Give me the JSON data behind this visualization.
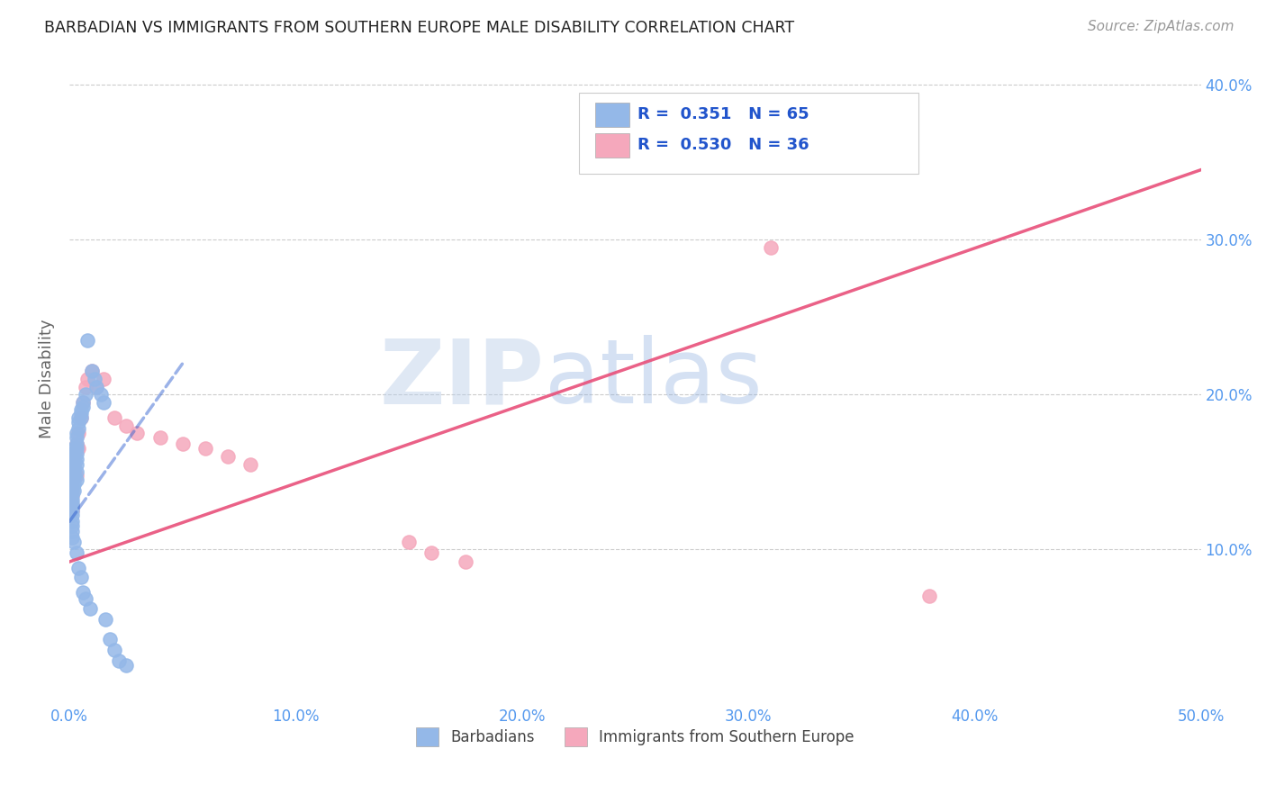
{
  "title": "BARBADIAN VS IMMIGRANTS FROM SOUTHERN EUROPE MALE DISABILITY CORRELATION CHART",
  "source": "Source: ZipAtlas.com",
  "ylabel": "Male Disability",
  "xlim": [
    0.0,
    0.5
  ],
  "ylim": [
    0.0,
    0.42
  ],
  "xticks": [
    0.0,
    0.1,
    0.2,
    0.3,
    0.4,
    0.5
  ],
  "yticks": [
    0.1,
    0.2,
    0.3,
    0.4
  ],
  "xtick_labels": [
    "0.0%",
    "10.0%",
    "20.0%",
    "30.0%",
    "40.0%",
    "50.0%"
  ],
  "ytick_labels": [
    "10.0%",
    "20.0%",
    "30.0%",
    "40.0%"
  ],
  "watermark_zip": "ZIP",
  "watermark_atlas": "atlas",
  "legend_r1": "R =  0.351   N = 65",
  "legend_r2": "R =  0.530   N = 36",
  "blue_color": "#94b8e8",
  "pink_color": "#f5a8bc",
  "blue_line_color": "#2255cc",
  "pink_line_color": "#e8507a",
  "title_color": "#333333",
  "axis_color": "#5599ee",
  "blue_scatter_x": [
    0.001,
    0.001,
    0.001,
    0.001,
    0.001,
    0.001,
    0.001,
    0.001,
    0.001,
    0.001,
    0.001,
    0.001,
    0.001,
    0.001,
    0.001,
    0.001,
    0.001,
    0.001,
    0.001,
    0.001,
    0.002,
    0.002,
    0.002,
    0.002,
    0.002,
    0.002,
    0.002,
    0.002,
    0.002,
    0.002,
    0.003,
    0.003,
    0.003,
    0.003,
    0.003,
    0.003,
    0.003,
    0.003,
    0.003,
    0.003,
    0.004,
    0.004,
    0.004,
    0.004,
    0.005,
    0.005,
    0.005,
    0.005,
    0.006,
    0.006,
    0.006,
    0.007,
    0.007,
    0.008,
    0.009,
    0.01,
    0.011,
    0.012,
    0.014,
    0.015,
    0.016,
    0.018,
    0.02,
    0.022,
    0.025
  ],
  "blue_scatter_y": [
    0.155,
    0.155,
    0.158,
    0.16,
    0.162,
    0.148,
    0.145,
    0.142,
    0.14,
    0.138,
    0.135,
    0.132,
    0.13,
    0.128,
    0.125,
    0.122,
    0.118,
    0.115,
    0.112,
    0.108,
    0.165,
    0.162,
    0.158,
    0.155,
    0.15,
    0.148,
    0.145,
    0.142,
    0.138,
    0.105,
    0.175,
    0.172,
    0.168,
    0.165,
    0.162,
    0.158,
    0.155,
    0.15,
    0.145,
    0.098,
    0.185,
    0.182,
    0.178,
    0.088,
    0.19,
    0.188,
    0.185,
    0.082,
    0.195,
    0.192,
    0.072,
    0.2,
    0.068,
    0.235,
    0.062,
    0.215,
    0.21,
    0.205,
    0.2,
    0.195,
    0.055,
    0.042,
    0.035,
    0.028,
    0.025
  ],
  "pink_scatter_x": [
    0.001,
    0.001,
    0.001,
    0.001,
    0.001,
    0.001,
    0.001,
    0.001,
    0.002,
    0.002,
    0.002,
    0.002,
    0.003,
    0.003,
    0.004,
    0.004,
    0.005,
    0.006,
    0.007,
    0.008,
    0.01,
    0.012,
    0.015,
    0.02,
    0.025,
    0.03,
    0.04,
    0.05,
    0.06,
    0.07,
    0.08,
    0.15,
    0.16,
    0.175,
    0.31,
    0.38
  ],
  "pink_scatter_y": [
    0.155,
    0.148,
    0.145,
    0.14,
    0.138,
    0.135,
    0.128,
    0.125,
    0.162,
    0.158,
    0.155,
    0.15,
    0.168,
    0.148,
    0.175,
    0.165,
    0.185,
    0.195,
    0.205,
    0.21,
    0.215,
    0.205,
    0.21,
    0.185,
    0.18,
    0.175,
    0.172,
    0.168,
    0.165,
    0.16,
    0.155,
    0.105,
    0.098,
    0.092,
    0.295,
    0.07
  ],
  "blue_trend_x": [
    0.0,
    0.05
  ],
  "blue_trend_y": [
    0.118,
    0.22
  ],
  "pink_trend_x": [
    0.0,
    0.5
  ],
  "pink_trend_y": [
    0.092,
    0.345
  ]
}
